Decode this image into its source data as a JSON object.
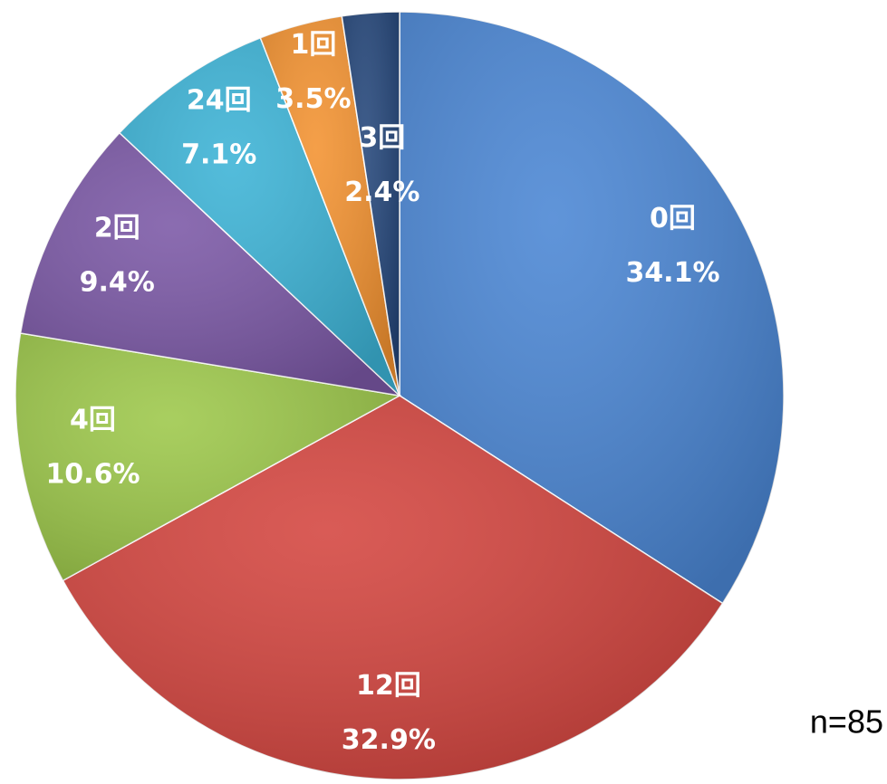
{
  "chart_data": {
    "type": "pie",
    "categories": [
      "0回",
      "12回",
      "4回",
      "2回",
      "24回",
      "1回",
      "3回"
    ],
    "values": [
      34.1,
      32.9,
      10.6,
      9.4,
      7.1,
      3.5,
      2.4
    ],
    "value_labels": [
      "34.1%",
      "32.9%",
      "10.6%",
      "9.4%",
      "7.1%",
      "3.5%",
      "2.4%"
    ],
    "colors": [
      "#4a86d4",
      "#d4453f",
      "#9dc84a",
      "#7b58a6",
      "#3cb3d6",
      "#f39230",
      "#24467a"
    ],
    "annotation": "n=85"
  }
}
